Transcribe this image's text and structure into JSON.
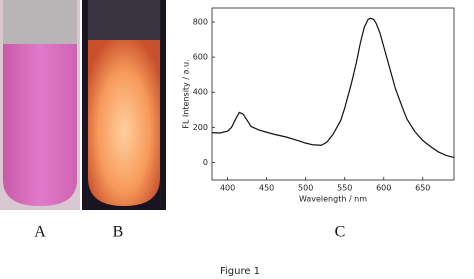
{
  "chart_data": {
    "type": "line",
    "x_label": "Wavelength / nm",
    "y_label": "FL Intensity / a.u.",
    "x": [
      380,
      390,
      400,
      405,
      410,
      415,
      420,
      425,
      430,
      440,
      450,
      460,
      475,
      490,
      500,
      510,
      520,
      527,
      535,
      545,
      550,
      558,
      565,
      570,
      575,
      580,
      583,
      587,
      590,
      595,
      600,
      610,
      615,
      625,
      630,
      640,
      650,
      660,
      670,
      680,
      690
    ],
    "series": [
      {
        "color": "#111111",
        "values": [
          170,
          168,
          178,
          200,
          245,
          285,
          275,
          240,
          205,
          185,
          172,
          160,
          145,
          125,
          110,
          100,
          98,
          115,
          160,
          240,
          310,
          440,
          570,
          680,
          770,
          815,
          822,
          815,
          795,
          740,
          660,
          500,
          420,
          300,
          245,
          175,
          125,
          90,
          60,
          40,
          28
        ]
      }
    ],
    "xlim": [
      380,
      690
    ],
    "ylim": [
      -100,
      880
    ],
    "xticks": [
      400,
      450,
      500,
      550,
      600,
      650
    ],
    "yticks": [
      0,
      200,
      400,
      600,
      800
    ]
  },
  "panels": [
    "A",
    "B",
    "C"
  ],
  "caption": "Figure 1"
}
